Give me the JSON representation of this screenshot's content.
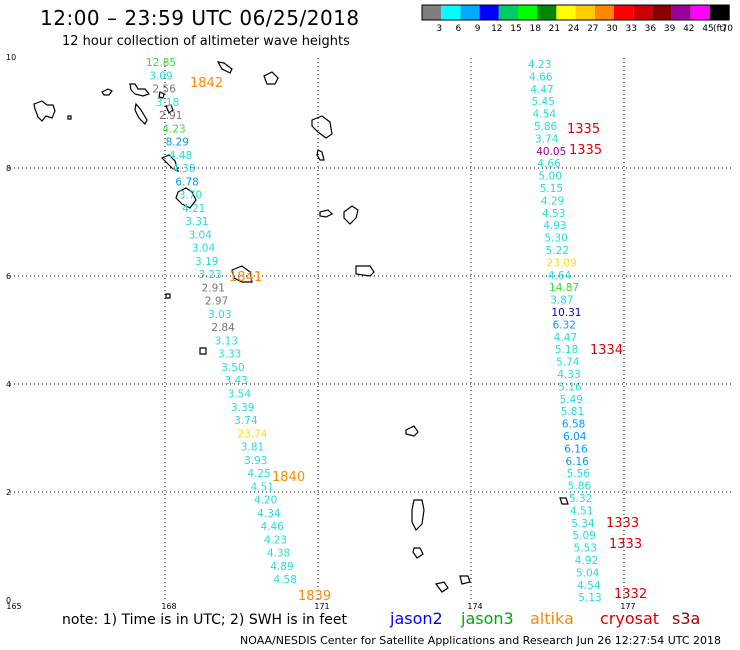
{
  "header": {
    "title": "12:00 – 23:59 UTC 06/25/2018",
    "subtitle": "12 hour collection of altimeter wave heights"
  },
  "legend": {
    "unit": "(ft)",
    "swatches": [
      {
        "label": "3",
        "color": "#7f7f7f"
      },
      {
        "label": "6",
        "color": "#00ffff"
      },
      {
        "label": "9",
        "color": "#00aaff"
      },
      {
        "label": "12",
        "color": "#0000ff"
      },
      {
        "label": "15",
        "color": "#00cc66"
      },
      {
        "label": "18",
        "color": "#00ff00"
      },
      {
        "label": "21",
        "color": "#008800"
      },
      {
        "label": "24",
        "color": "#ffff00"
      },
      {
        "label": "27",
        "color": "#ffcc00"
      },
      {
        "label": "30",
        "color": "#ff8800"
      },
      {
        "label": "33",
        "color": "#ff0000"
      },
      {
        "label": "36",
        "color": "#cc0000"
      },
      {
        "label": "39",
        "color": "#880000"
      },
      {
        "label": "42",
        "color": "#990099"
      },
      {
        "label": "45",
        "color": "#ff00ff"
      },
      {
        "label": "70",
        "color": "#000000"
      }
    ]
  },
  "axes": {
    "lon_ticks": [
      "165",
      "168",
      "171",
      "174",
      "177"
    ],
    "lat_ticks": [
      "0",
      "2",
      "4",
      "6",
      "8",
      "10"
    ]
  },
  "tracks": [
    {
      "name": "west",
      "points": [
        {
          "v": "12.85",
          "c": "#33dd33"
        },
        {
          "v": "3.09",
          "c": "#22dddd"
        },
        {
          "v": "2.56",
          "c": "#777777"
        },
        {
          "v": "3.18",
          "c": "#22dddd"
        },
        {
          "v": "2.91",
          "c": "#777777"
        },
        {
          "v": "4.23",
          "c": "#33dd33"
        },
        {
          "v": "8.29",
          "c": "#0099ff"
        },
        {
          "v": "4.48",
          "c": "#22dddd"
        },
        {
          "v": "4.38",
          "c": "#22dddd"
        },
        {
          "v": "6.78",
          "c": "#0099ff"
        },
        {
          "v": "3.70",
          "c": "#22dddd"
        },
        {
          "v": "4.21",
          "c": "#22dddd"
        },
        {
          "v": "3.31",
          "c": "#22dddd"
        },
        {
          "v": "3.04",
          "c": "#22dddd"
        },
        {
          "v": "3.04",
          "c": "#22dddd"
        },
        {
          "v": "3.19",
          "c": "#22dddd"
        },
        {
          "v": "3.23",
          "c": "#22dddd"
        },
        {
          "v": "2.91",
          "c": "#777777"
        },
        {
          "v": "2.97",
          "c": "#777777"
        },
        {
          "v": "3.03",
          "c": "#22dddd"
        },
        {
          "v": "2.84",
          "c": "#777777"
        },
        {
          "v": "3.13",
          "c": "#22dddd"
        },
        {
          "v": "3.33",
          "c": "#22dddd"
        },
        {
          "v": "3.50",
          "c": "#22dddd"
        },
        {
          "v": "3.43",
          "c": "#22dddd"
        },
        {
          "v": "3.54",
          "c": "#22dddd"
        },
        {
          "v": "3.39",
          "c": "#22dddd"
        },
        {
          "v": "3.74",
          "c": "#22dddd"
        },
        {
          "v": "23.74",
          "c": "#ffdd00"
        },
        {
          "v": "3.81",
          "c": "#22dddd"
        },
        {
          "v": "3.93",
          "c": "#22dddd"
        },
        {
          "v": "4.25",
          "c": "#22dddd"
        },
        {
          "v": "4.51",
          "c": "#22dddd"
        },
        {
          "v": "4.20",
          "c": "#22dddd"
        },
        {
          "v": "4.34",
          "c": "#22dddd"
        },
        {
          "v": "4.46",
          "c": "#22dddd"
        },
        {
          "v": "4.23",
          "c": "#22dddd"
        },
        {
          "v": "4.38",
          "c": "#22dddd"
        },
        {
          "v": "4.89",
          "c": "#22dddd"
        },
        {
          "v": "4.58",
          "c": "#22dddd"
        }
      ]
    },
    {
      "name": "east",
      "points": [
        {
          "v": "4.23",
          "c": "#22dddd"
        },
        {
          "v": "4.66",
          "c": "#22dddd"
        },
        {
          "v": "4.47",
          "c": "#22dddd"
        },
        {
          "v": "5.45",
          "c": "#22dddd"
        },
        {
          "v": "4.54",
          "c": "#22dddd"
        },
        {
          "v": "5.86",
          "c": "#22dddd"
        },
        {
          "v": "3.74",
          "c": "#22dddd"
        },
        {
          "v": "40.05",
          "c": "#990099"
        },
        {
          "v": "4.66",
          "c": "#22dddd"
        },
        {
          "v": "5.00",
          "c": "#22dddd"
        },
        {
          "v": "5.15",
          "c": "#22dddd"
        },
        {
          "v": "4.29",
          "c": "#22dddd"
        },
        {
          "v": "4.53",
          "c": "#22dddd"
        },
        {
          "v": "4.93",
          "c": "#22dddd"
        },
        {
          "v": "5.30",
          "c": "#22dddd"
        },
        {
          "v": "5.22",
          "c": "#22dddd"
        },
        {
          "v": "23.09",
          "c": "#ffdd00"
        },
        {
          "v": "4.64",
          "c": "#22dddd"
        },
        {
          "v": "14.87",
          "c": "#33dd33"
        },
        {
          "v": "3.87",
          "c": "#22dddd"
        },
        {
          "v": "10.31",
          "c": "#0000cc"
        },
        {
          "v": "6.32",
          "c": "#0099ff"
        },
        {
          "v": "4.47",
          "c": "#22dddd"
        },
        {
          "v": "5.18",
          "c": "#22dddd"
        },
        {
          "v": "5.74",
          "c": "#22dddd"
        },
        {
          "v": "4.33",
          "c": "#22dddd"
        },
        {
          "v": "5.16",
          "c": "#22dddd"
        },
        {
          "v": "5.49",
          "c": "#22dddd"
        },
        {
          "v": "5.81",
          "c": "#22dddd"
        },
        {
          "v": "6.58",
          "c": "#0099ff"
        },
        {
          "v": "6.04",
          "c": "#0099ff"
        },
        {
          "v": "6.16",
          "c": "#0099ff"
        },
        {
          "v": "6.16",
          "c": "#0099ff"
        },
        {
          "v": "5.56",
          "c": "#22dddd"
        },
        {
          "v": "5.86",
          "c": "#22dddd"
        },
        {
          "v": "5.32",
          "c": "#22dddd"
        },
        {
          "v": "4.51",
          "c": "#22dddd"
        },
        {
          "v": "5.34",
          "c": "#22dddd"
        },
        {
          "v": "5.09",
          "c": "#22dddd"
        },
        {
          "v": "5.53",
          "c": "#22dddd"
        },
        {
          "v": "4.92",
          "c": "#22dddd"
        },
        {
          "v": "5.04",
          "c": "#22dddd"
        },
        {
          "v": "4.54",
          "c": "#22dddd"
        },
        {
          "v": "5.13",
          "c": "#22dddd"
        }
      ]
    }
  ],
  "time_labels": [
    {
      "text": "1842",
      "color": "#ff8800"
    },
    {
      "text": "1841",
      "color": "#ff8800"
    },
    {
      "text": "1840",
      "color": "#ff8800"
    },
    {
      "text": "1839",
      "color": "#ff8800"
    },
    {
      "text": "1335",
      "color": "#dd0000"
    },
    {
      "text": "1335",
      "color": "#dd0000"
    },
    {
      "text": "1334",
      "color": "#dd0000"
    },
    {
      "text": "1333",
      "color": "#dd0000"
    },
    {
      "text": "1333",
      "color": "#dd0000"
    },
    {
      "text": "1332",
      "color": "#dd0000"
    }
  ],
  "footer": {
    "note": "note: 1) Time is in UTC; 2) SWH is in feet",
    "satellites": [
      {
        "name": "jason2",
        "color": "#0000ff"
      },
      {
        "name": "jason3",
        "color": "#00aa00"
      },
      {
        "name": "altika",
        "color": "#ff8800"
      },
      {
        "name": "cryosat",
        "color": "#dd0000"
      },
      {
        "name": "s3a",
        "color": "#990000"
      }
    ],
    "credit": "NOAA/NESDIS Center for Satellite Applications and Research    Jun 26 12:27:54 UTC 2018"
  }
}
